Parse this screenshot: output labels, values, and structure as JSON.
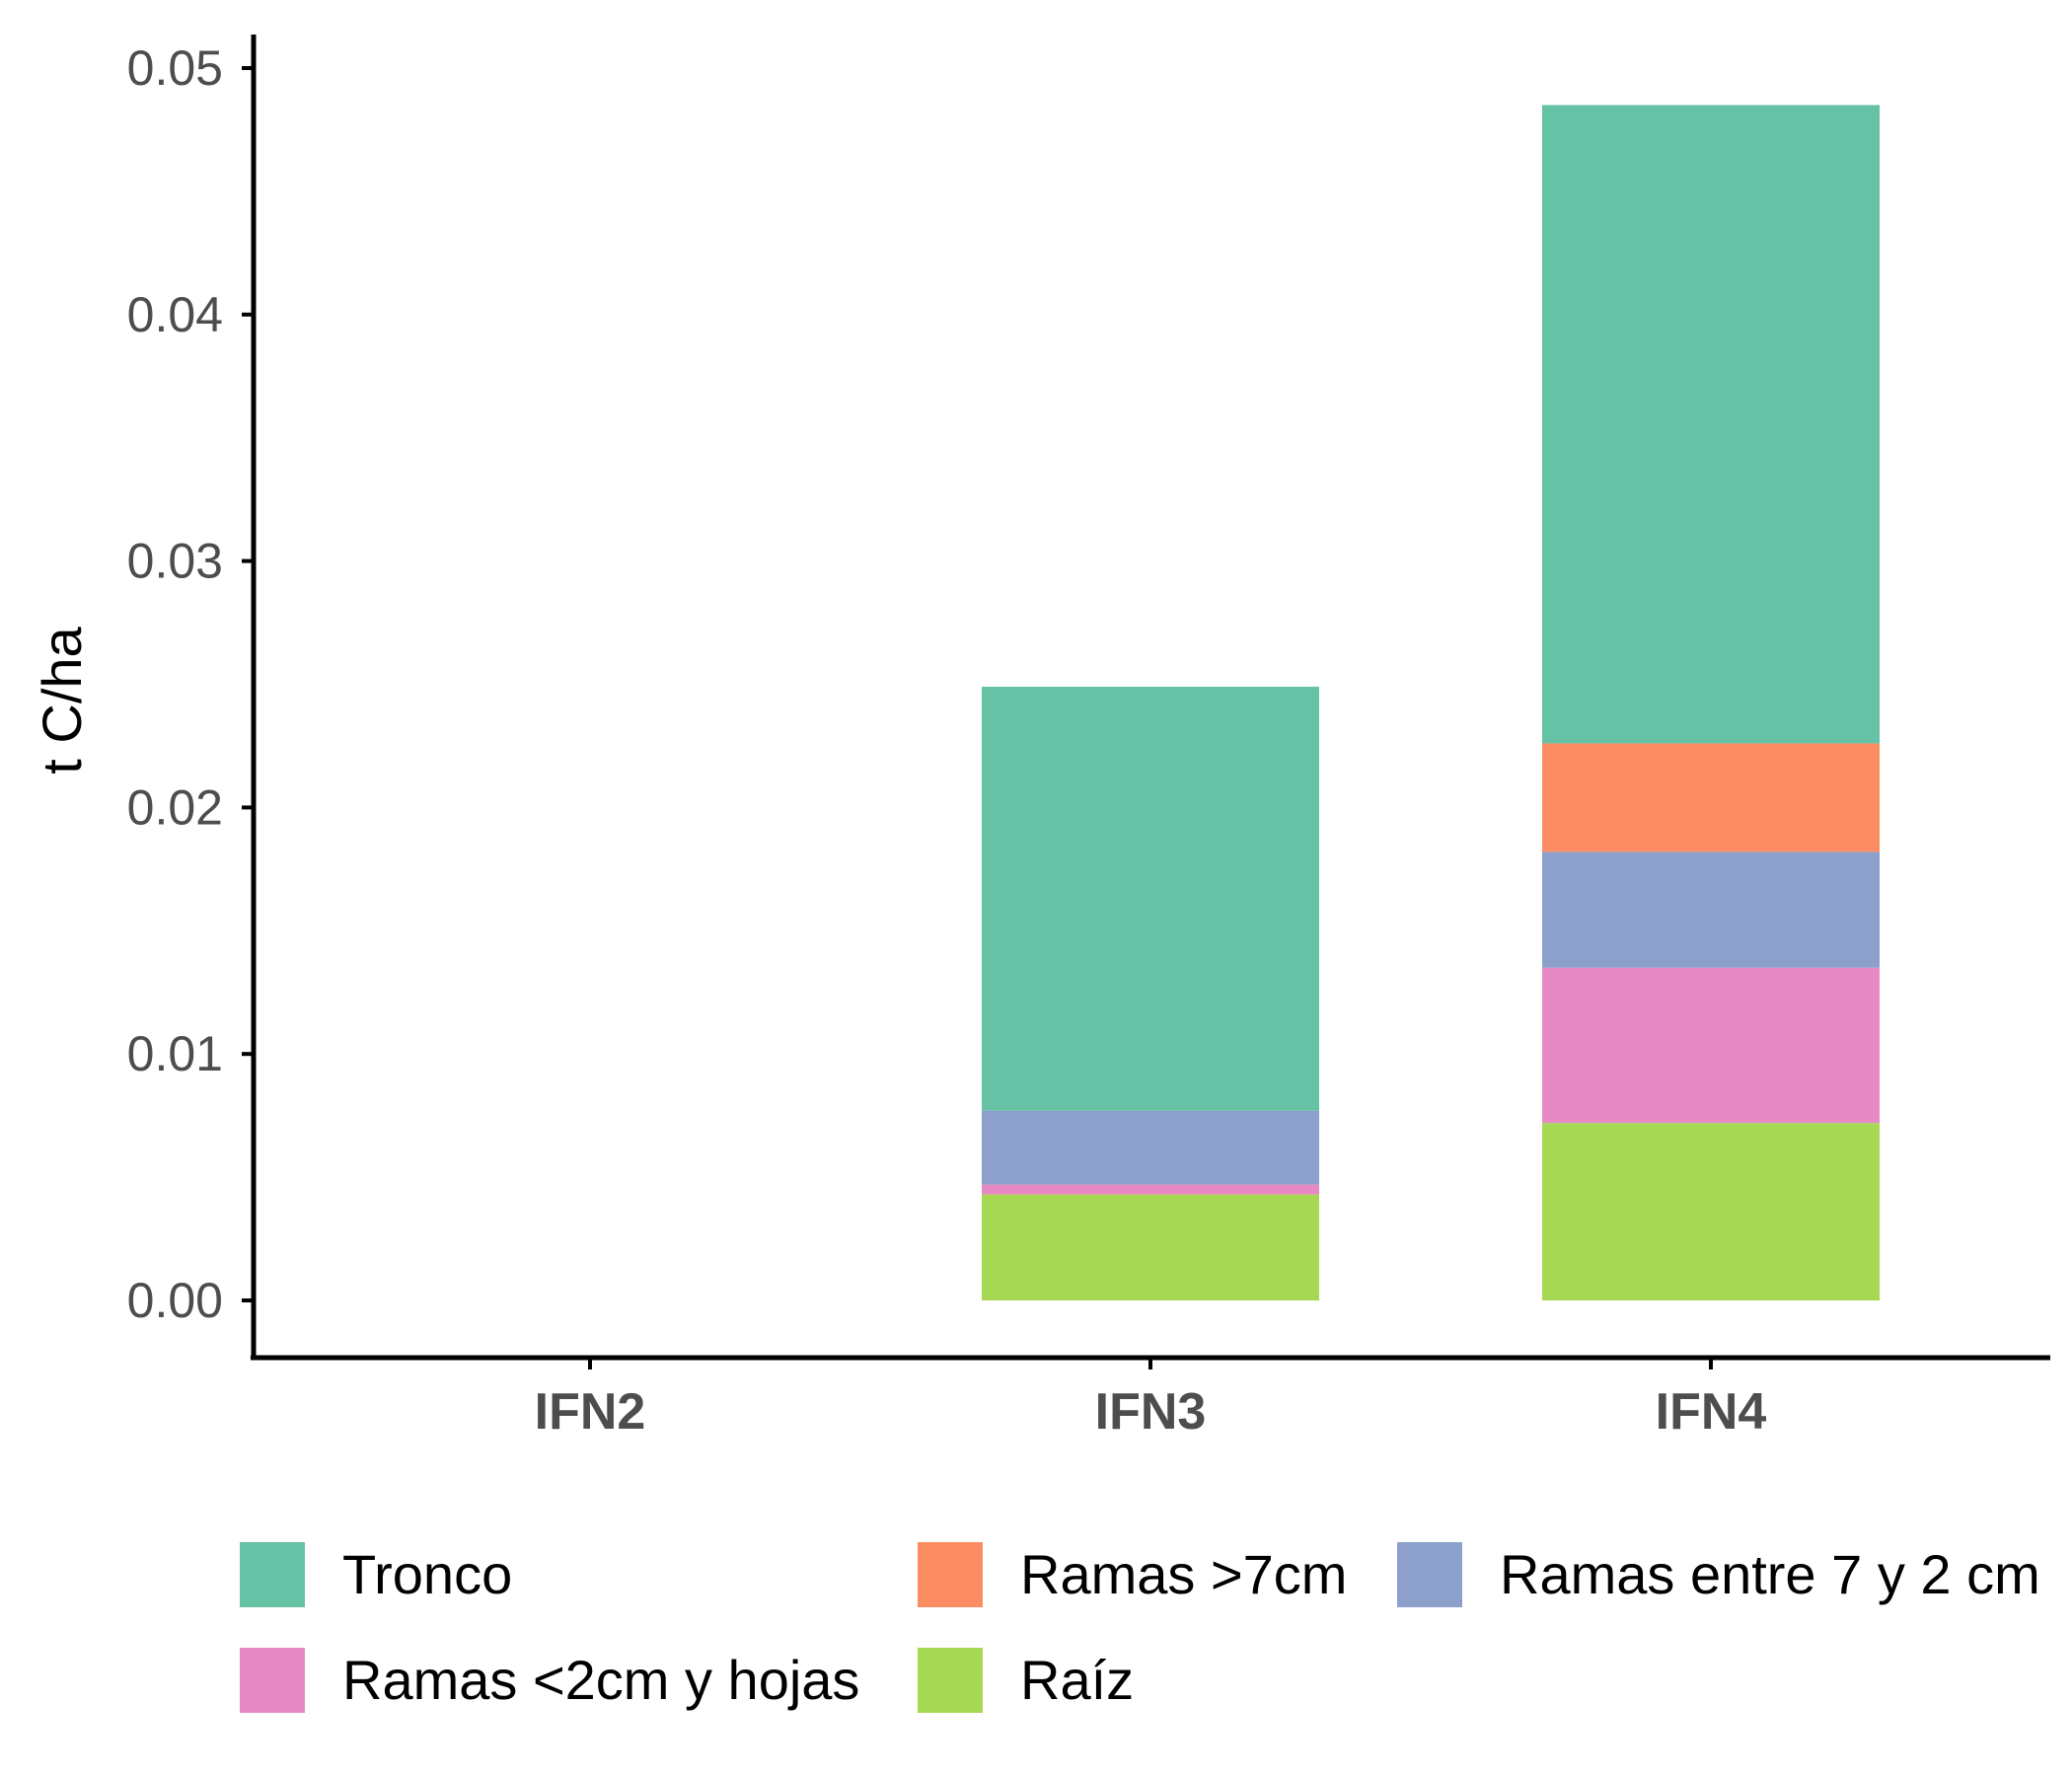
{
  "chart_data": {
    "type": "bar",
    "stacked": true,
    "title": "",
    "xlabel": "",
    "ylabel": "t C/ha",
    "categories": [
      "IFN2",
      "IFN3",
      "IFN4"
    ],
    "ylim": [
      0,
      0.05
    ],
    "yticks": [
      "0.00",
      "0.01",
      "0.02",
      "0.03",
      "0.04",
      "0.05"
    ],
    "grid": false,
    "legend_position": "bottom",
    "series": [
      {
        "name": "Raíz",
        "color": "#a6d854",
        "values": [
          0,
          0.0043,
          0.0072
        ]
      },
      {
        "name": "Ramas <2cm y hojas",
        "color": "#e78ac3",
        "values": [
          0,
          0.0004,
          0.0063
        ]
      },
      {
        "name": "Ramas entre 7 y 2 cm",
        "color": "#8da0cb",
        "values": [
          0,
          0.003,
          0.0047
        ]
      },
      {
        "name": "Ramas >7cm",
        "color": "#fc8d62",
        "values": [
          0,
          0,
          0.0044
        ]
      },
      {
        "name": "Tronco",
        "color": "#66c2a5",
        "values": [
          0,
          0.0172,
          0.0259
        ]
      }
    ],
    "legend_order": [
      "Tronco",
      "Ramas >7cm",
      "Ramas entre 7 y 2 cm",
      "Ramas <2cm y hojas",
      "Raíz"
    ]
  }
}
